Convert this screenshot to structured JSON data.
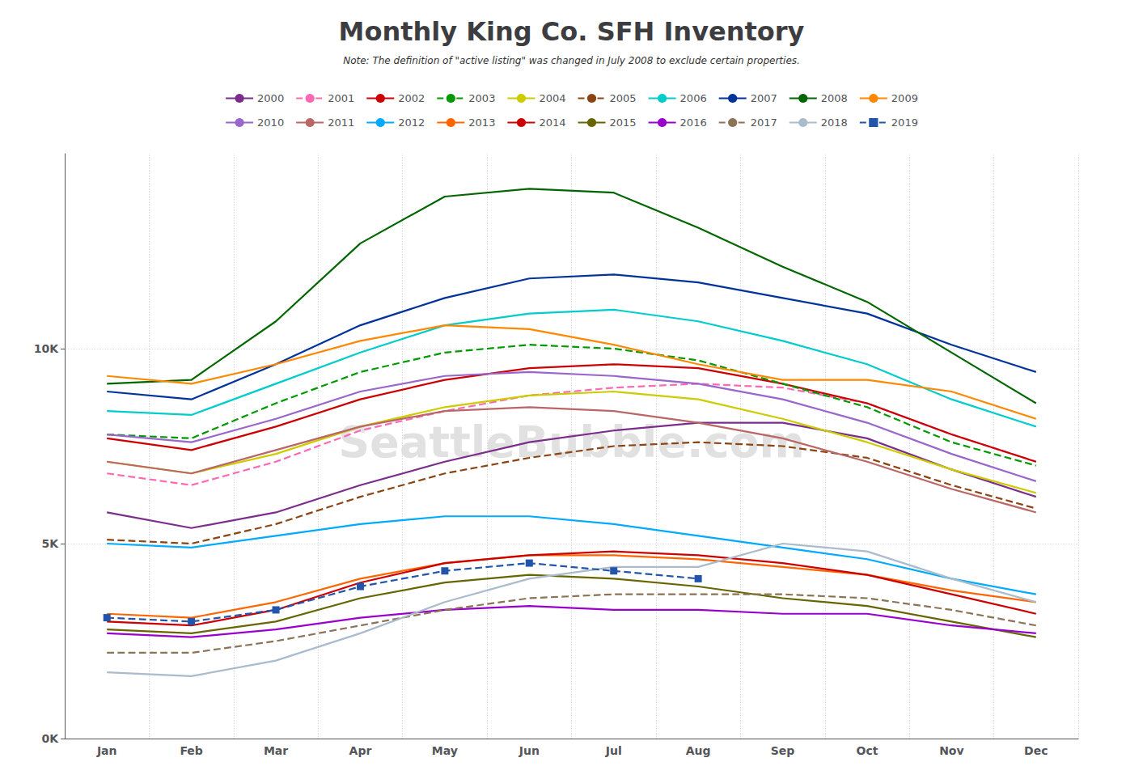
{
  "chart_data": {
    "type": "line",
    "title": "Monthly King Co. SFH Inventory",
    "subtitle": "Note: The definition of \"active listing\" was changed in July 2008 to exclude certain properties.",
    "annotations": [
      "SeattleBubble.com"
    ],
    "categories": [
      "Jan",
      "Feb",
      "Mar",
      "Apr",
      "May",
      "Jun",
      "Jul",
      "Aug",
      "Sep",
      "Oct",
      "Nov",
      "Dec"
    ],
    "series": [
      {
        "name": "2000",
        "color": "#7B2D8B",
        "line_style": "solid",
        "values": [
          5800,
          5400,
          5800,
          6500,
          7100,
          7600,
          7900,
          8100,
          8100,
          7700,
          6900,
          6200
        ]
      },
      {
        "name": "2001",
        "color": "#FF69B4",
        "line_style": "dashed",
        "values": [
          6800,
          6500,
          7100,
          7900,
          8400,
          8800,
          9000,
          9100,
          9000,
          8600,
          7800,
          7100
        ]
      },
      {
        "name": "2002",
        "color": "#CC0000",
        "line_style": "solid",
        "values": [
          7700,
          7400,
          8000,
          8700,
          9200,
          9500,
          9600,
          9500,
          9100,
          8600,
          7800,
          7100
        ]
      },
      {
        "name": "2003",
        "color": "#009900",
        "line_style": "dashed",
        "values": [
          7800,
          7700,
          8600,
          9400,
          9900,
          10100,
          10000,
          9700,
          9100,
          8500,
          7600,
          7000
        ]
      },
      {
        "name": "2004",
        "color": "#CCCC00",
        "line_style": "solid",
        "values": [
          7100,
          6800,
          7300,
          8000,
          8500,
          8800,
          8900,
          8700,
          8200,
          7600,
          6900,
          6300
        ]
      },
      {
        "name": "2005",
        "color": "#8B4513",
        "line_style": "dashed",
        "values": [
          5100,
          5000,
          5500,
          6200,
          6800,
          7200,
          7500,
          7600,
          7500,
          7200,
          6500,
          5900
        ]
      },
      {
        "name": "2006",
        "color": "#00CCCC",
        "line_style": "solid",
        "values": [
          8400,
          8300,
          9100,
          9900,
          10600,
          10900,
          11000,
          10700,
          10200,
          9600,
          8700,
          8000
        ]
      },
      {
        "name": "2007",
        "color": "#003399",
        "line_style": "solid",
        "values": [
          8900,
          8700,
          9600,
          10600,
          11300,
          11800,
          11900,
          11700,
          11300,
          10900,
          10100,
          9400
        ]
      },
      {
        "name": "2008",
        "color": "#006600",
        "line_style": "solid",
        "values": [
          9100,
          9200,
          10700,
          12700,
          13900,
          14100,
          14000,
          13100,
          12100,
          11200,
          9900,
          8600
        ]
      },
      {
        "name": "2009",
        "color": "#FF8800",
        "line_style": "solid",
        "values": [
          9300,
          9100,
          9600,
          10200,
          10600,
          10500,
          10100,
          9600,
          9200,
          9200,
          8900,
          8200
        ]
      },
      {
        "name": "2010",
        "color": "#9966CC",
        "line_style": "solid",
        "values": [
          7800,
          7600,
          8200,
          8900,
          9300,
          9400,
          9300,
          9100,
          8700,
          8100,
          7300,
          6600
        ]
      },
      {
        "name": "2011",
        "color": "#BB6666",
        "line_style": "solid",
        "values": [
          7100,
          6800,
          7400,
          8000,
          8400,
          8500,
          8400,
          8100,
          7700,
          7100,
          6400,
          5800
        ]
      },
      {
        "name": "2012",
        "color": "#00AAFF",
        "line_style": "solid",
        "values": [
          5000,
          4900,
          5200,
          5500,
          5700,
          5700,
          5500,
          5200,
          4900,
          4600,
          4100,
          3700
        ]
      },
      {
        "name": "2013",
        "color": "#FF6600",
        "line_style": "solid",
        "values": [
          3200,
          3100,
          3500,
          4100,
          4500,
          4700,
          4700,
          4600,
          4400,
          4200,
          3800,
          3500
        ]
      },
      {
        "name": "2014",
        "color": "#CC0000",
        "line_style": "solid",
        "values": [
          3000,
          2900,
          3300,
          4000,
          4500,
          4700,
          4800,
          4700,
          4500,
          4200,
          3700,
          3200
        ]
      },
      {
        "name": "2015",
        "color": "#666600",
        "line_style": "solid",
        "values": [
          2800,
          2700,
          3000,
          3600,
          4000,
          4200,
          4100,
          3900,
          3600,
          3400,
          3000,
          2600
        ]
      },
      {
        "name": "2016",
        "color": "#9900CC",
        "line_style": "solid",
        "values": [
          2700,
          2600,
          2800,
          3100,
          3300,
          3400,
          3300,
          3300,
          3200,
          3200,
          2900,
          2700
        ]
      },
      {
        "name": "2017",
        "color": "#8B7355",
        "line_style": "dashed",
        "values": [
          2200,
          2200,
          2500,
          2900,
          3300,
          3600,
          3700,
          3700,
          3700,
          3600,
          3300,
          2900
        ]
      },
      {
        "name": "2018",
        "color": "#AABBCC",
        "line_style": "solid",
        "values": [
          1700,
          1600,
          2000,
          2700,
          3500,
          4100,
          4400,
          4400,
          5000,
          4800,
          4100,
          3500
        ]
      },
      {
        "name": "2019",
        "color": "#2255AA",
        "line_style": "dashed",
        "marker": "square",
        "values": [
          3100,
          3000,
          3300,
          3900,
          4300,
          4500,
          4300,
          4100,
          null,
          null,
          null,
          null
        ]
      }
    ],
    "ylim": [
      0,
      15000
    ],
    "yticks": [
      {
        "value": 0,
        "label": "0K"
      },
      {
        "value": 5000,
        "label": "5K"
      },
      {
        "value": 10000,
        "label": "10K"
      }
    ],
    "grid": true,
    "legend": "top"
  }
}
